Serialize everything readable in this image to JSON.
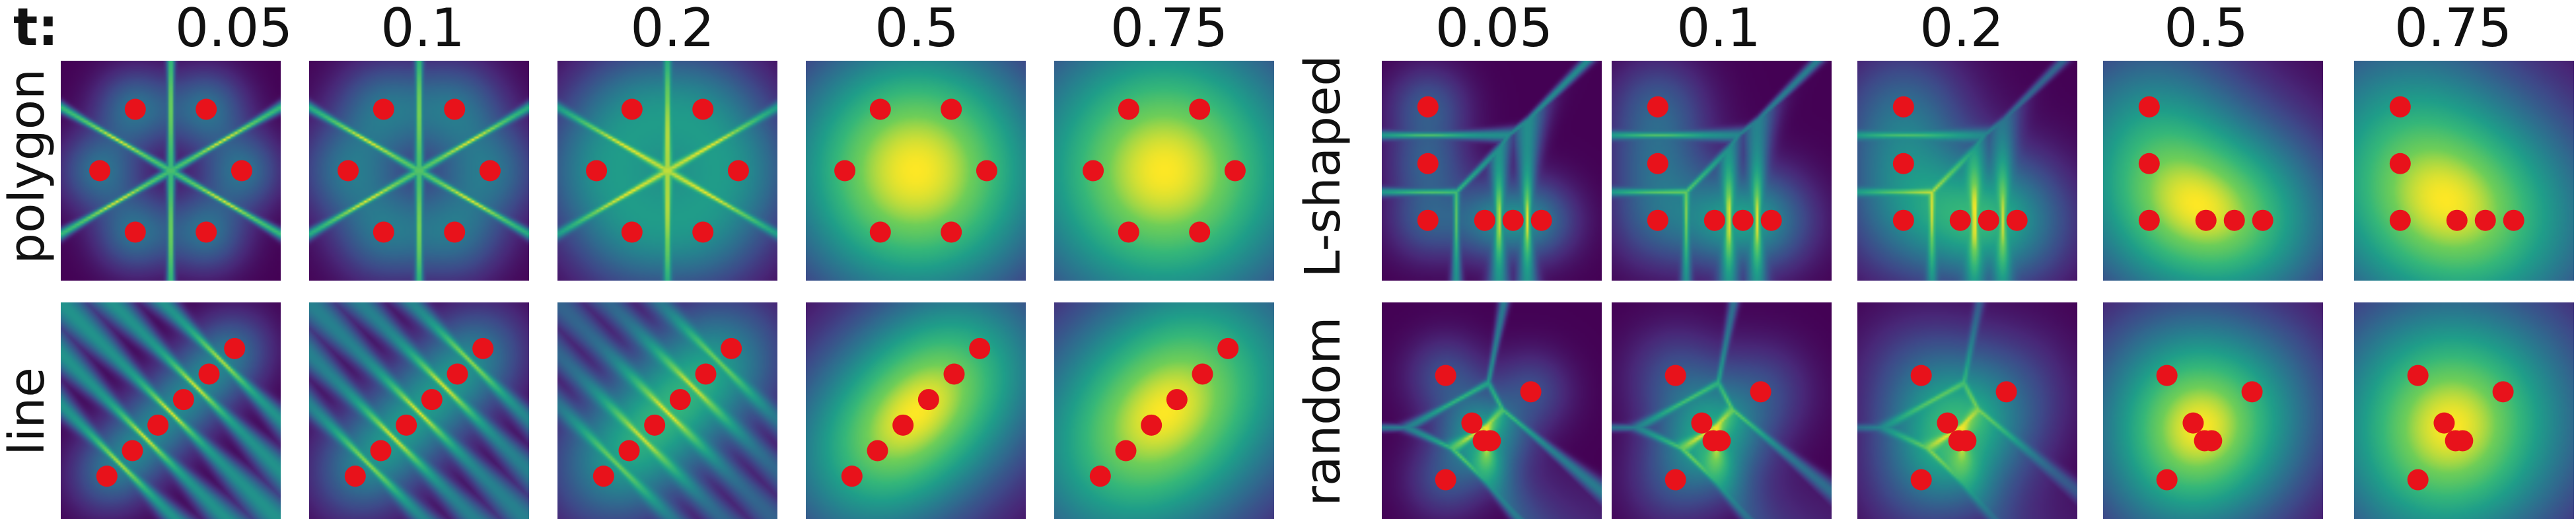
{
  "header": {
    "t_prefix": "t:",
    "times": [
      "0.05",
      "0.1",
      "0.2",
      "0.5",
      "0.75"
    ]
  },
  "rows": {
    "left": [
      "polygon",
      "line"
    ],
    "right": [
      "L-shaped",
      "random"
    ]
  },
  "colors": {
    "background": "#ffffff",
    "field_low": "#440154",
    "field_mid": "#21918c",
    "field_high": "#fde725",
    "point": "#e8121b"
  },
  "time_values": [
    0.05,
    0.1,
    0.2,
    0.5,
    0.75
  ],
  "point_sets": {
    "polygon": [
      [
        -0.5,
        0.866
      ],
      [
        0.5,
        0.866
      ],
      [
        1,
        0
      ],
      [
        0.5,
        -0.866
      ],
      [
        -0.5,
        -0.866
      ],
      [
        -1,
        0
      ]
    ],
    "line": [
      [
        -0.9,
        -0.9
      ],
      [
        -0.54,
        -0.54
      ],
      [
        -0.18,
        -0.18
      ],
      [
        0.18,
        0.18
      ],
      [
        0.54,
        0.54
      ],
      [
        0.9,
        0.9
      ]
    ],
    "L-shaped": [
      [
        -0.9,
        0.9
      ],
      [
        -0.9,
        0.1
      ],
      [
        -0.9,
        -0.7
      ],
      [
        -0.1,
        -0.7
      ],
      [
        0.3,
        -0.7
      ],
      [
        0.7,
        -0.7
      ]
    ],
    "random": [
      [
        -0.65,
        0.52
      ],
      [
        0.55,
        0.29
      ],
      [
        -0.28,
        -0.15
      ],
      [
        -0.12,
        -0.4
      ],
      [
        -0.02,
        -0.4
      ],
      [
        -0.65,
        -0.95
      ]
    ]
  }
}
